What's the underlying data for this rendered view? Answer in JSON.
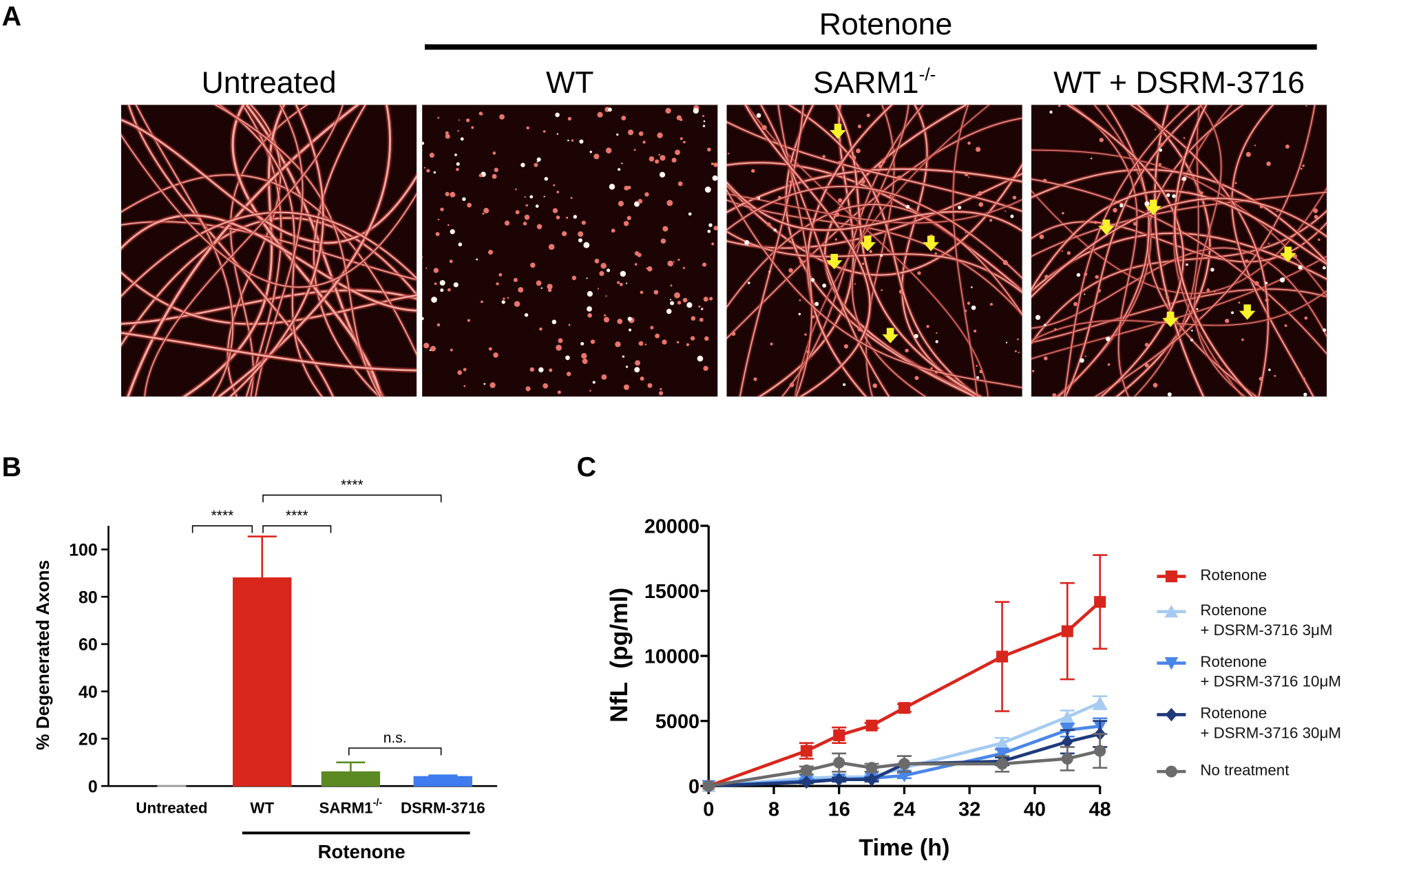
{
  "panel_a": {
    "label": "A",
    "group_label": "Rotenone",
    "images": [
      {
        "title": "Untreated"
      },
      {
        "title": "WT"
      },
      {
        "title": "SARM1",
        "superscript": "-/-"
      },
      {
        "title": "WT + DSRM-3716"
      }
    ]
  },
  "chart_data": [
    {
      "type": "bar",
      "panel_label": "B",
      "y_label": "% Degenerated Axons",
      "categories": [
        "Untreated",
        "WT",
        "SARM1",
        "DSRM-3716"
      ],
      "category_superscripts": [
        null,
        null,
        "-/-",
        null
      ],
      "values": [
        0,
        88,
        6,
        4
      ],
      "errors": [
        0,
        17.5,
        4,
        0.5
      ],
      "colors": [
        "#9a9a9a",
        "#d9261c",
        "#5b8a22",
        "#3f7cf0"
      ],
      "group_label": "Rotenone",
      "annotations": [
        "****",
        "****",
        "****",
        "n.s."
      ],
      "ylim": [
        0,
        110
      ],
      "yticks": [
        0,
        20,
        40,
        60,
        80,
        100
      ]
    },
    {
      "type": "line",
      "panel_label": "C",
      "x_label": "Time (h)",
      "y_label": "NfL  (pg/ml)",
      "x": [
        0,
        12,
        16,
        20,
        24,
        36,
        44,
        48
      ],
      "series": [
        {
          "name": "Rotenone",
          "color": "#d9261c",
          "marker": "square",
          "values": [
            0,
            2700,
            3900,
            4650,
            6000,
            9950,
            11900,
            14150
          ],
          "errors": [
            0,
            600,
            600,
            200,
            300,
            4200,
            3700,
            3600
          ]
        },
        {
          "name": "Rotenone\n+ DSRM-3716 3μM",
          "color": "#a6cbf2",
          "marker": "triangle-up",
          "values": [
            0,
            600,
            700,
            700,
            1400,
            3300,
            5300,
            6400
          ],
          "errors": [
            0,
            200,
            200,
            200,
            300,
            400,
            500,
            500
          ]
        },
        {
          "name": "Rotenone\n+ DSRM-3716 10μM",
          "color": "#4a86e8",
          "marker": "triangle-down",
          "values": [
            0,
            400,
            500,
            600,
            800,
            2500,
            4300,
            4600
          ],
          "errors": [
            0,
            150,
            150,
            150,
            200,
            300,
            500,
            600
          ]
        },
        {
          "name": "Rotenone\n+ DSRM-3716 30μM",
          "color": "#1f3a7a",
          "marker": "diamond",
          "values": [
            0,
            300,
            500,
            500,
            1700,
            1900,
            3400,
            4000
          ],
          "errors": [
            0,
            100,
            150,
            150,
            600,
            300,
            900,
            1000
          ]
        },
        {
          "name": "No treatment",
          "color": "#6b6b6b",
          "marker": "circle",
          "values": [
            0,
            1200,
            1800,
            1400,
            1700,
            1700,
            2100,
            2700
          ],
          "errors": [
            0,
            300,
            700,
            300,
            600,
            600,
            900,
            1300
          ]
        }
      ],
      "xlim": [
        0,
        48
      ],
      "xticks": [
        0,
        8,
        16,
        24,
        32,
        40,
        48
      ],
      "ylim": [
        0,
        20000
      ],
      "yticks": [
        0,
        5000,
        10000,
        15000,
        20000
      ]
    }
  ]
}
